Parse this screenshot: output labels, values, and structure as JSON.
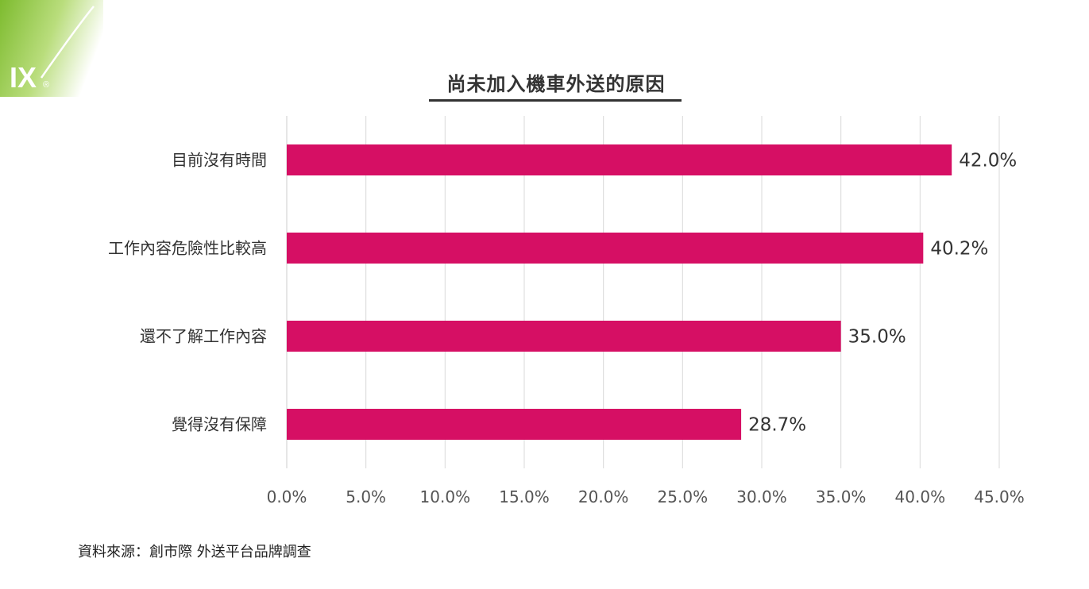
{
  "colors": {
    "bar": "#d60f64",
    "logo_green": "#8cc63f",
    "grid": "#d9d9d9"
  },
  "logo": {
    "text": "IX",
    "registered": "®"
  },
  "chart_data": {
    "type": "bar",
    "orientation": "horizontal",
    "title": "尚未加入機車外送的原因",
    "categories": [
      "目前沒有時間",
      "工作內容危險性比較高",
      "還不了解工作內容",
      "覺得沒有保障"
    ],
    "values": [
      42.0,
      40.2,
      35.0,
      28.7
    ],
    "value_labels": [
      "42.0%",
      "40.2%",
      "35.0%",
      "28.7%"
    ],
    "xlim": [
      0,
      45
    ],
    "xticks": [
      0,
      5,
      10,
      15,
      20,
      25,
      30,
      35,
      40,
      45
    ],
    "xtick_labels": [
      "0.0%",
      "5.0%",
      "10.0%",
      "15.0%",
      "20.0%",
      "25.0%",
      "30.0%",
      "35.0%",
      "40.0%",
      "45.0%"
    ],
    "grid": true,
    "legend": false
  },
  "source": "資料來源：創市際 外送平台品牌調查"
}
